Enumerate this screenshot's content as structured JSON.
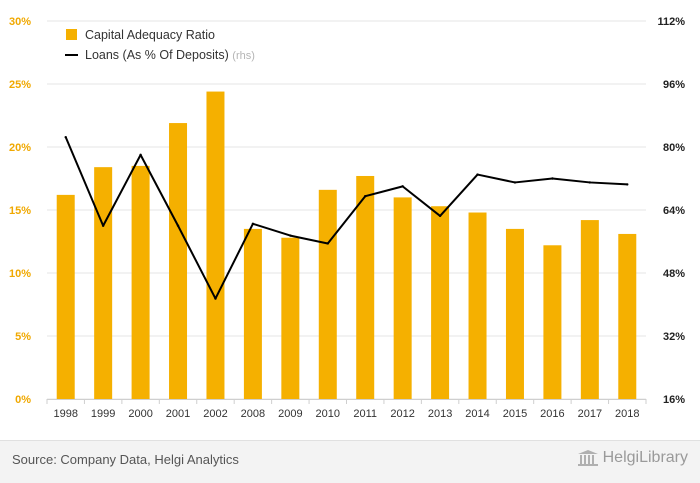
{
  "chart_data": {
    "type": "bar",
    "categories": [
      "1998",
      "1999",
      "2000",
      "2001",
      "2002",
      "2008",
      "2009",
      "2010",
      "2011",
      "2012",
      "2013",
      "2014",
      "2015",
      "2016",
      "2017",
      "2018"
    ],
    "series": [
      {
        "name": "Capital Adequacy Ratio",
        "type": "bar",
        "axis": "left",
        "values": [
          16.2,
          18.4,
          18.5,
          21.9,
          24.4,
          13.5,
          12.8,
          16.6,
          17.7,
          16.0,
          15.3,
          14.8,
          13.5,
          12.2,
          14.2,
          13.1
        ]
      },
      {
        "name": "Loans (As % Of Deposits)",
        "name_suffix": "(rhs)",
        "type": "line",
        "axis": "right",
        "values": [
          82.5,
          60.0,
          78.0,
          60.0,
          41.5,
          60.5,
          57.5,
          55.5,
          67.5,
          70.0,
          62.5,
          73.0,
          71.0,
          72.0,
          71.0,
          70.5
        ]
      }
    ],
    "y_left": {
      "ylim": [
        0,
        30
      ],
      "ticks": [
        "0%",
        "5%",
        "10%",
        "15%",
        "20%",
        "25%",
        "30%"
      ]
    },
    "y_right": {
      "ylim": [
        16,
        112
      ],
      "ticks": [
        "16%",
        "32%",
        "48%",
        "64%",
        "80%",
        "96%",
        "112%"
      ]
    },
    "grid": true,
    "legend": "top-left",
    "colors": {
      "bar": "#f5b000",
      "line": "#000000",
      "left_axis_text": "#f0a800",
      "grid": "#e6e6e6"
    }
  },
  "footer": {
    "source": "Source: Company Data, Helgi Analytics",
    "brand": "HelgiLibrary"
  }
}
